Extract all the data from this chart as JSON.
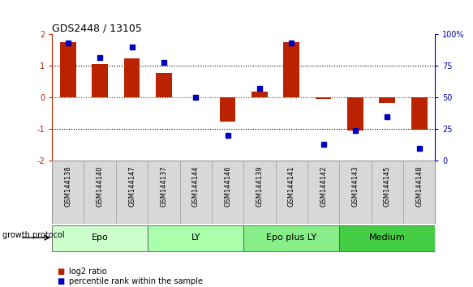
{
  "title": "GDS2448 / 13105",
  "samples": [
    "GSM144138",
    "GSM144140",
    "GSM144147",
    "GSM144137",
    "GSM144144",
    "GSM144146",
    "GSM144139",
    "GSM144141",
    "GSM144142",
    "GSM144143",
    "GSM144145",
    "GSM144148"
  ],
  "log2_ratio": [
    1.75,
    1.05,
    1.25,
    0.78,
    0.0,
    -0.75,
    0.18,
    1.75,
    -0.05,
    -1.05,
    -0.18,
    -1.02
  ],
  "percentile_rank": [
    93,
    82,
    90,
    78,
    50,
    20,
    57,
    93,
    13,
    24,
    35,
    10
  ],
  "groups": [
    {
      "label": "Epo",
      "start": 0,
      "end": 3,
      "color": "#ccffcc"
    },
    {
      "label": "LY",
      "start": 3,
      "end": 6,
      "color": "#aaffaa"
    },
    {
      "label": "Epo plus LY",
      "start": 6,
      "end": 9,
      "color": "#88ee88"
    },
    {
      "label": "Medium",
      "start": 9,
      "end": 12,
      "color": "#44cc44"
    }
  ],
  "bar_color": "#bb2200",
  "dot_color": "#0000bb",
  "ylim_left": [
    -2,
    2
  ],
  "ylim_right": [
    0,
    100
  ],
  "yticks_left": [
    -2,
    -1,
    0,
    1,
    2
  ],
  "yticks_right": [
    0,
    25,
    50,
    75,
    100
  ],
  "ytick_right_labels": [
    "0",
    "25",
    "50",
    "75",
    "100%"
  ],
  "hlines_black": [
    -1,
    1
  ],
  "hline_red": 0,
  "background_color": "#ffffff",
  "sample_bg_color": "#d8d8d8",
  "bar_width": 0.5,
  "title_fontsize": 9,
  "tick_fontsize": 7,
  "sample_fontsize": 6,
  "group_fontsize": 8,
  "legend_fontsize": 7
}
